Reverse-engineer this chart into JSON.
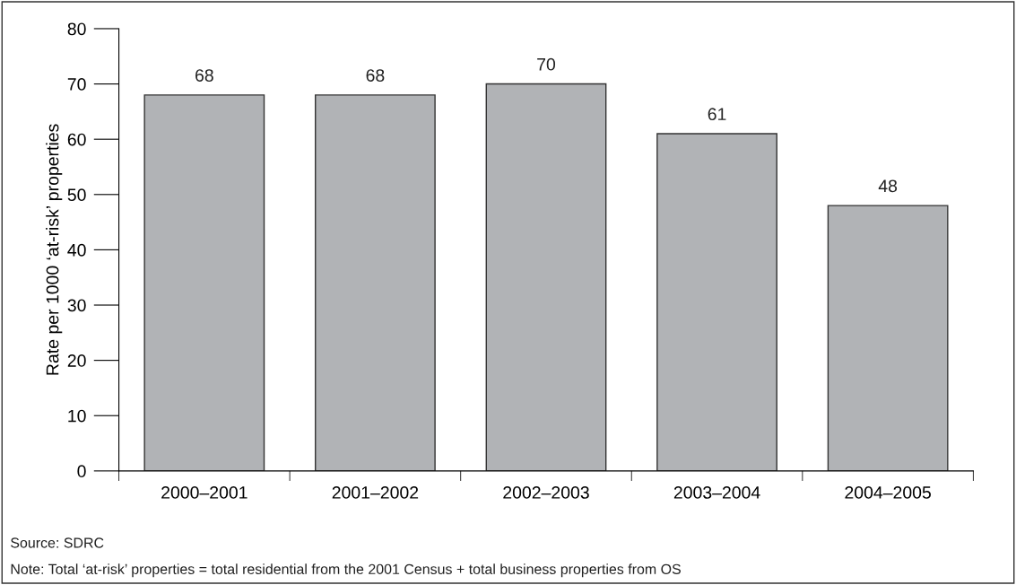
{
  "chart_data": {
    "type": "bar",
    "ylabel": "Rate per 1000 ‘at-risk’ properties",
    "categories": [
      "2000–2001",
      "2001–2002",
      "2002–2003",
      "2003–2004",
      "2004–2005"
    ],
    "values": [
      68,
      68,
      70,
      61,
      48
    ],
    "color": "#b1b3b6",
    "data_labels": true,
    "ylim": [
      0,
      80
    ],
    "yticks": [
      0,
      10,
      20,
      30,
      40,
      50,
      60,
      70,
      80
    ],
    "grid": false,
    "legend": false,
    "annotations": [
      "Source: SDRC",
      "Note: Total ‘at-risk’ properties = total residential from the 2001 Census + total business properties from OS"
    ]
  }
}
